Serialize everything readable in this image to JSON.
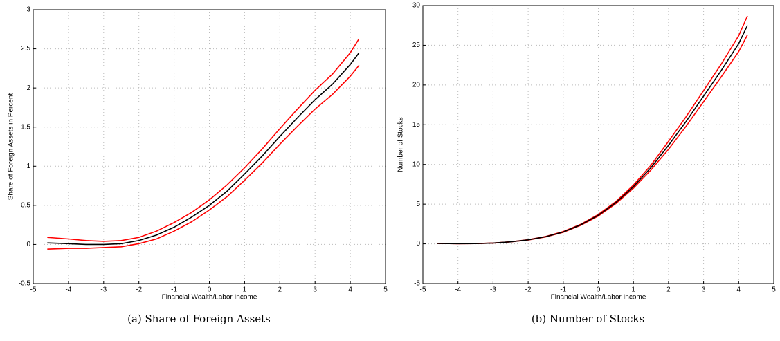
{
  "chart_data": [
    {
      "type": "line",
      "caption": "(a) Share of Foreign Assets",
      "xlabel": "Financial Wealth/Labor Income",
      "ylabel": "Share of Foreign Assets in Percent",
      "x": [
        -4.6,
        -4,
        -3.5,
        -3,
        -2.5,
        -2,
        -1.5,
        -1,
        -0.5,
        0,
        0.5,
        1,
        1.5,
        2,
        2.5,
        3,
        3.5,
        4,
        4.25
      ],
      "series": [
        {
          "color": "#ff0000",
          "values": [
            0.09,
            0.07,
            0.05,
            0.04,
            0.05,
            0.09,
            0.17,
            0.28,
            0.41,
            0.57,
            0.76,
            0.98,
            1.22,
            1.48,
            1.73,
            1.97,
            2.18,
            2.45,
            2.63
          ]
        },
        {
          "color": "#ff0000",
          "values": [
            -0.06,
            -0.05,
            -0.05,
            -0.04,
            -0.03,
            0.01,
            0.07,
            0.17,
            0.29,
            0.44,
            0.61,
            0.82,
            1.04,
            1.28,
            1.51,
            1.73,
            1.92,
            2.15,
            2.29
          ]
        },
        {
          "color": "#000000",
          "values": [
            0.02,
            0.01,
            0.0,
            0.0,
            0.01,
            0.05,
            0.12,
            0.22,
            0.35,
            0.5,
            0.68,
            0.9,
            1.13,
            1.38,
            1.62,
            1.85,
            2.05,
            2.3,
            2.45
          ]
        }
      ],
      "xlim": [
        -5,
        5
      ],
      "xticks": [
        -5,
        -4,
        -3,
        -2,
        -1,
        0,
        1,
        2,
        3,
        4,
        5
      ],
      "ylim": [
        -0.5,
        3
      ],
      "yticks": [
        -0.5,
        0,
        0.5,
        1,
        1.5,
        2,
        2.5,
        3
      ],
      "grid": true
    },
    {
      "type": "line",
      "caption": "(b) Number of Stocks",
      "xlabel": "Financial Wealth/Labor Income",
      "ylabel": "Number of Stocks",
      "x": [
        -4.6,
        -4,
        -3.5,
        -3,
        -2.5,
        -2,
        -1.5,
        -1,
        -0.5,
        0,
        0.5,
        1,
        1.5,
        2,
        2.5,
        3,
        3.5,
        4,
        4.25
      ],
      "series": [
        {
          "color": "#ff0000",
          "values": [
            0.05,
            0.02,
            0.03,
            0.1,
            0.25,
            0.52,
            0.93,
            1.55,
            2.47,
            3.7,
            5.33,
            7.4,
            9.9,
            12.9,
            16.0,
            19.3,
            22.6,
            26.2,
            28.7
          ]
        },
        {
          "color": "#ff0000",
          "values": [
            0.05,
            0.02,
            0.03,
            0.1,
            0.25,
            0.48,
            0.87,
            1.45,
            2.33,
            3.5,
            5.07,
            7.0,
            9.3,
            11.9,
            14.8,
            17.9,
            21.0,
            24.2,
            26.3
          ]
        },
        {
          "color": "#000000",
          "values": [
            0.05,
            0.02,
            0.03,
            0.1,
            0.25,
            0.5,
            0.9,
            1.5,
            2.4,
            3.6,
            5.2,
            7.2,
            9.6,
            12.4,
            15.4,
            18.6,
            21.8,
            25.2,
            27.5
          ]
        }
      ],
      "xlim": [
        -5,
        5
      ],
      "xticks": [
        -5,
        -4,
        -3,
        -2,
        -1,
        0,
        1,
        2,
        3,
        4,
        5
      ],
      "ylim": [
        -5,
        30
      ],
      "yticks": [
        -5,
        0,
        5,
        10,
        15,
        20,
        25,
        30
      ],
      "grid": true
    }
  ]
}
